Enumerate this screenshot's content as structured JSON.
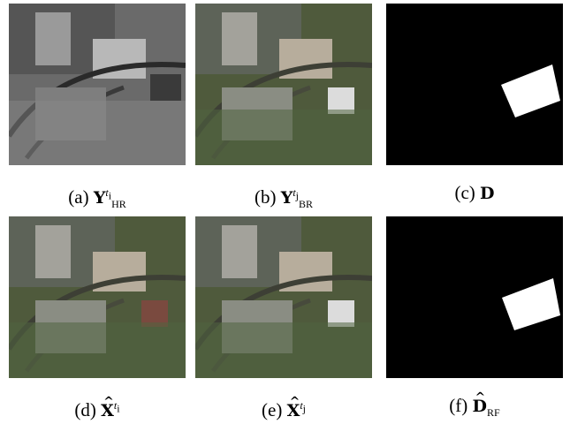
{
  "figure": {
    "panels": [
      {
        "id": "a",
        "kind": "aerial-grayscale",
        "caption": {
          "prefix": "(a)",
          "symbol": "Y",
          "hat": false,
          "sup": "t",
          "sup_sub": "i",
          "sub": "HR"
        }
      },
      {
        "id": "b",
        "kind": "aerial-color-lowres",
        "caption": {
          "prefix": "(b)",
          "symbol": "Y",
          "hat": false,
          "sup": "t",
          "sup_sub": "j",
          "sub": "BR"
        }
      },
      {
        "id": "c",
        "kind": "change-mask",
        "caption": {
          "prefix": "(c)",
          "symbol": "D",
          "hat": false,
          "sup": "",
          "sup_sub": "",
          "sub": ""
        }
      },
      {
        "id": "d",
        "kind": "aerial-color-fused",
        "caption": {
          "prefix": "(d)",
          "symbol": "X",
          "hat": true,
          "sup": "t",
          "sup_sub": "i",
          "sub": ""
        }
      },
      {
        "id": "e",
        "kind": "aerial-color-fused",
        "caption": {
          "prefix": "(e)",
          "symbol": "X",
          "hat": true,
          "sup": "t",
          "sup_sub": "j",
          "sub": ""
        }
      },
      {
        "id": "f",
        "kind": "change-mask-estimated",
        "caption": {
          "prefix": "(f)",
          "symbol": "D",
          "hat": true,
          "sup": "",
          "sup_sub": "",
          "sub": "RF"
        }
      }
    ],
    "colors": {
      "mask_background": "#000000",
      "mask_foreground": "#ffffff",
      "caption_text": "#000000"
    }
  }
}
